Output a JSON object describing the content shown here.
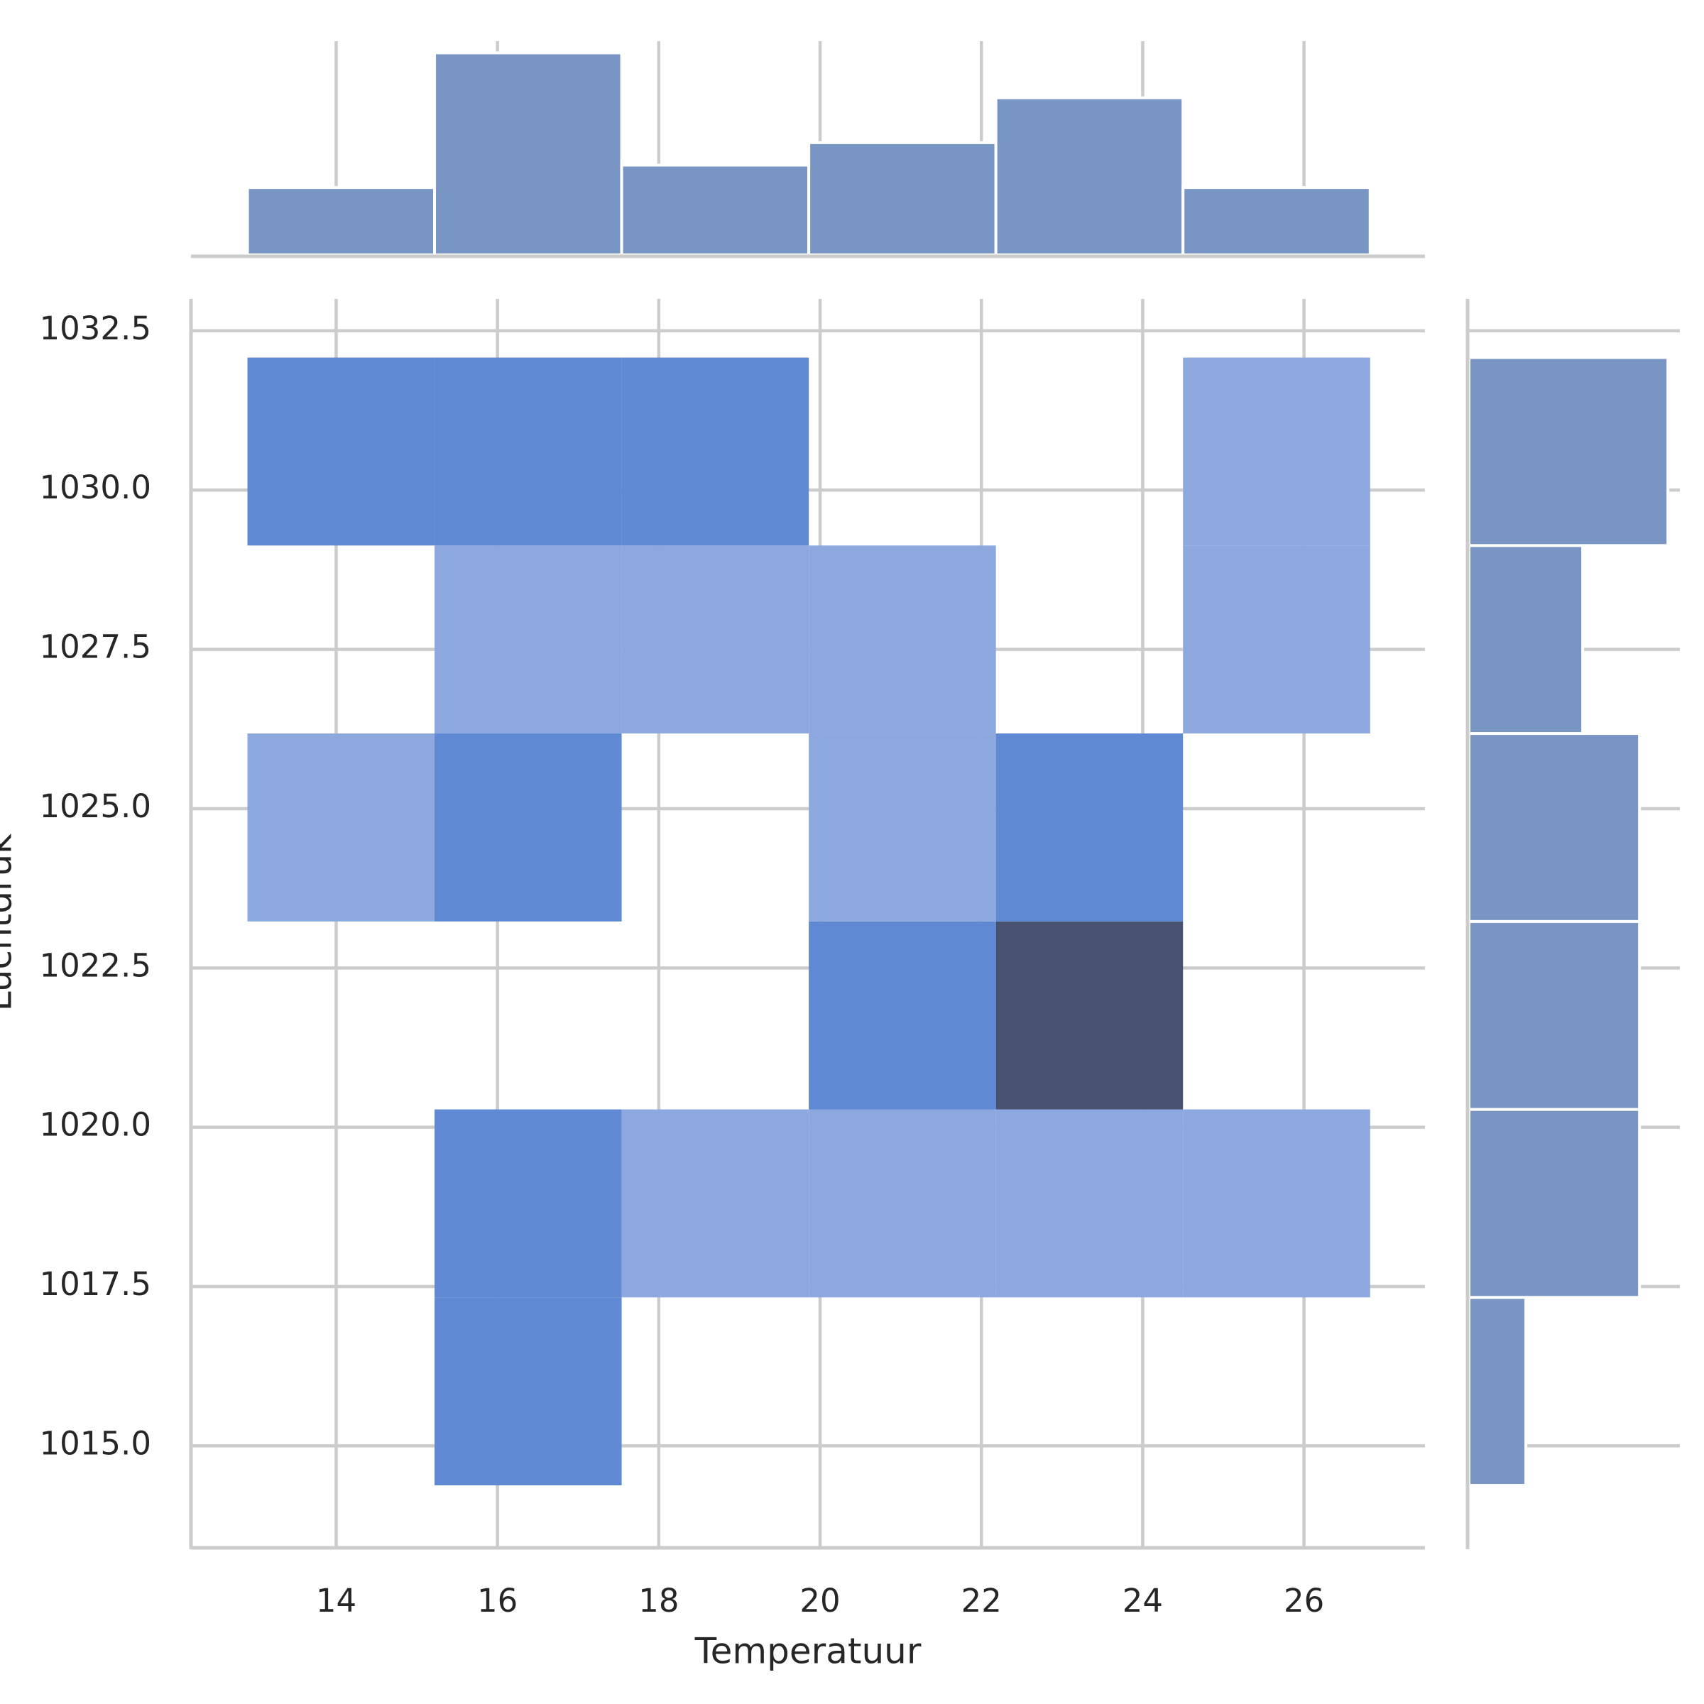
{
  "chart_data": {
    "type": "hist2d",
    "x_label": "Temperatuur",
    "y_label": "Luchtdruk",
    "x_bins": [
      12.9,
      15.22,
      17.54,
      19.86,
      22.18,
      24.5,
      26.82
    ],
    "y_bins": [
      1014.38,
      1017.33,
      1020.28,
      1023.23,
      1026.18,
      1029.13,
      1032.08
    ],
    "counts": [
      [
        0,
        2,
        0,
        0,
        0,
        0
      ],
      [
        0,
        2,
        1,
        1,
        1,
        1
      ],
      [
        0,
        0,
        0,
        2,
        4,
        0
      ],
      [
        1,
        2,
        0,
        1,
        2,
        0
      ],
      [
        0,
        1,
        1,
        1,
        0,
        1
      ],
      [
        2,
        2,
        2,
        0,
        0,
        1
      ]
    ],
    "x_counts": [
      3,
      9,
      4,
      5,
      7,
      3
    ],
    "y_counts": [
      2,
      6,
      6,
      6,
      4,
      7
    ],
    "xlim": [
      12.2,
      27.5
    ],
    "ylim": [
      1013.4,
      1033.0
    ],
    "xticks": [
      14,
      16,
      18,
      20,
      22,
      24,
      26
    ],
    "yticks": [
      {
        "value": 1015,
        "label": "1015.0"
      },
      1017.5,
      {
        "value": 1020,
        "label": "1020.0"
      },
      1022.5,
      {
        "value": 1025,
        "label": "1025.0"
      },
      1027.5,
      {
        "value": 1030,
        "label": "1030.0"
      },
      1032.5
    ],
    "cmap": [
      "#8da8df",
      "#5f8ad3",
      "#53709f",
      "#47536e"
    ],
    "marginal_color": "#7995c4",
    "grid": true
  }
}
